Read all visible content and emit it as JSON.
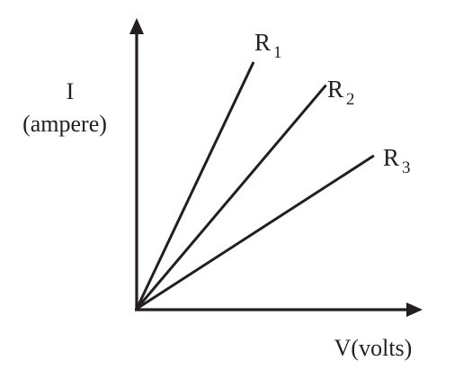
{
  "chart_data": {
    "type": "line",
    "ylabel": "I",
    "ylabel_unit": "(ampere)",
    "xlabel": "V(volts)",
    "grid": false,
    "legend": "none",
    "series": [
      {
        "name": "R1",
        "label_main": "R",
        "label_sub": "1",
        "x": [
          0,
          1
        ],
        "y": [
          0,
          1.93
        ]
      },
      {
        "name": "R2",
        "label_main": "R",
        "label_sub": "2",
        "x": [
          0,
          1
        ],
        "y": [
          0,
          1.08
        ]
      },
      {
        "name": "R3",
        "label_main": "R",
        "label_sub": "3",
        "x": [
          0,
          1
        ],
        "y": [
          0,
          0.59
        ]
      }
    ],
    "line_color": "#231f20"
  }
}
